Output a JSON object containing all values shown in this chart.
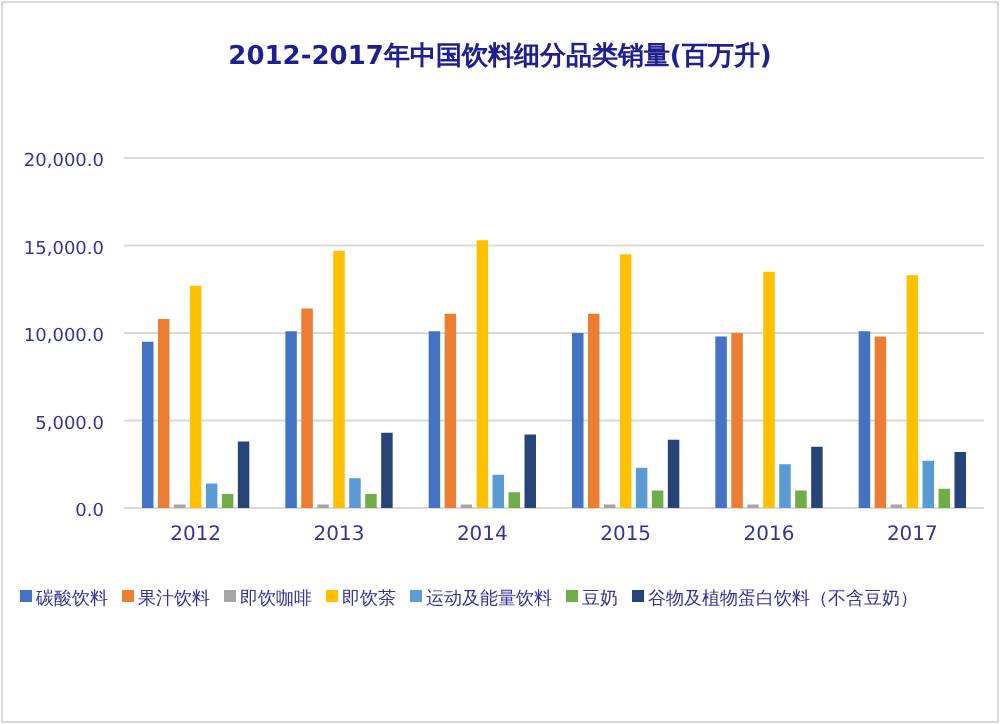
{
  "chart_data": {
    "type": "bar",
    "title": "2012-2017年中国饮料细分品类销量(百万升)",
    "categories": [
      "2012",
      "2013",
      "2014",
      "2015",
      "2016",
      "2017"
    ],
    "series": [
      {
        "name": "碳酸饮料",
        "color": "#4472c4",
        "values": [
          9500,
          10100,
          10100,
          10000,
          9800,
          10100
        ]
      },
      {
        "name": "果汁饮料",
        "color": "#ed7d31",
        "values": [
          10800,
          11400,
          11100,
          11100,
          10000,
          9800
        ]
      },
      {
        "name": "即饮咖啡",
        "color": "#a5a5a5",
        "values": [
          200,
          200,
          200,
          200,
          200,
          200
        ]
      },
      {
        "name": "即饮茶",
        "color": "#ffc000",
        "values": [
          12700,
          14700,
          15300,
          14500,
          13500,
          13300
        ]
      },
      {
        "name": "运动及能量饮料",
        "color": "#5b9bd5",
        "values": [
          1400,
          1700,
          1900,
          2300,
          2500,
          2700
        ]
      },
      {
        "name": "豆奶",
        "color": "#70ad47",
        "values": [
          800,
          800,
          900,
          1000,
          1000,
          1100
        ]
      },
      {
        "name": "谷物及植物蛋白饮料（不含豆奶）",
        "color": "#264478",
        "values": [
          3800,
          4300,
          4200,
          3900,
          3500,
          3200
        ]
      }
    ],
    "ylim": [
      0,
      20000
    ],
    "yticks": [
      {
        "value": 0,
        "label": "0.0"
      },
      {
        "value": 5000,
        "label": "5,000.0"
      },
      {
        "value": 10000,
        "label": "10,000.0"
      },
      {
        "value": 15000,
        "label": "15,000.0"
      },
      {
        "value": 20000,
        "label": "20,000.0"
      }
    ],
    "grid": "y",
    "legend": "bottom"
  }
}
